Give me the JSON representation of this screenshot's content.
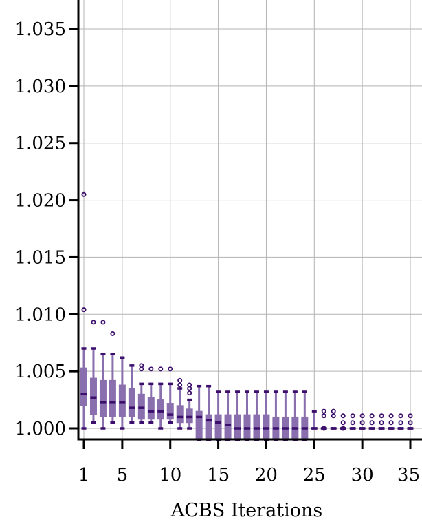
{
  "chart_data": {
    "type": "box",
    "title": "",
    "xlabel": "ACBS Iterations",
    "ylabel": "",
    "xlim": [
      0.5,
      35
    ],
    "ylim": [
      0.999,
      1.0372
    ],
    "xticks": [
      1,
      5,
      10,
      15,
      20,
      25,
      30,
      35
    ],
    "xtick_labels": [
      "1",
      "5",
      "10",
      "15",
      "20",
      "25",
      "30",
      "35"
    ],
    "yticks": [
      1.0,
      1.005,
      1.01,
      1.015,
      1.02,
      1.025,
      1.03,
      1.035
    ],
    "ytick_labels": [
      "1.000",
      "1.005",
      "1.010",
      "1.015",
      "1.020",
      "1.025",
      "1.030",
      "1.035"
    ],
    "grid": true,
    "colors": {
      "box": "#8a6fae",
      "dark": "#3b0f6b"
    },
    "boxes": [
      {
        "x": 1,
        "whislo": 1.0,
        "q1": 1.002,
        "med": 1.003,
        "q3": 1.0053,
        "whishi": 1.007,
        "fliers": [
          1.0205,
          1.0104
        ]
      },
      {
        "x": 2,
        "whislo": 1.0005,
        "q1": 1.0012,
        "med": 1.0027,
        "q3": 1.0044,
        "whishi": 1.007,
        "fliers": [
          1.0093
        ]
      },
      {
        "x": 3,
        "whislo": 1.0,
        "q1": 1.001,
        "med": 1.0023,
        "q3": 1.0042,
        "whishi": 1.0065,
        "fliers": [
          1.0093
        ]
      },
      {
        "x": 4,
        "whislo": 1.0005,
        "q1": 1.001,
        "med": 1.0023,
        "q3": 1.0042,
        "whishi": 1.0065,
        "fliers": [
          1.0083
        ]
      },
      {
        "x": 5,
        "whislo": 1.0,
        "q1": 1.001,
        "med": 1.0023,
        "q3": 1.0038,
        "whishi": 1.0062,
        "fliers": []
      },
      {
        "x": 6,
        "whislo": 1.0005,
        "q1": 1.001,
        "med": 1.0018,
        "q3": 1.0035,
        "whishi": 1.0055,
        "fliers": []
      },
      {
        "x": 7,
        "whislo": 1.0005,
        "q1": 1.0008,
        "med": 1.0018,
        "q3": 1.003,
        "whishi": 1.0039,
        "fliers": [
          1.0055,
          1.0052
        ]
      },
      {
        "x": 8,
        "whislo": 1.0005,
        "q1": 1.0008,
        "med": 1.0015,
        "q3": 1.0027,
        "whishi": 1.0039,
        "fliers": [
          1.0052
        ]
      },
      {
        "x": 9,
        "whislo": 1.0,
        "q1": 1.0008,
        "med": 1.0015,
        "q3": 1.0025,
        "whishi": 1.0039,
        "fliers": [
          1.0052
        ]
      },
      {
        "x": 10,
        "whislo": 1.0005,
        "q1": 1.0008,
        "med": 1.0012,
        "q3": 1.0022,
        "whishi": 1.0039,
        "fliers": [
          1.0052
        ]
      },
      {
        "x": 11,
        "whislo": 1.0,
        "q1": 1.0005,
        "med": 1.001,
        "q3": 1.002,
        "whishi": 1.0035,
        "fliers": [
          1.0042,
          1.0038
        ]
      },
      {
        "x": 12,
        "whislo": 1.0,
        "q1": 1.0005,
        "med": 1.001,
        "q3": 1.0017,
        "whishi": 1.0025,
        "fliers": [
          1.0038,
          1.0035,
          1.0031
        ]
      },
      {
        "x": 13,
        "whislo": 0.999,
        "q1": 0.999,
        "med": 1.001,
        "q3": 1.0015,
        "whishi": 1.0037,
        "fliers": []
      },
      {
        "x": 14,
        "whislo": 0.999,
        "q1": 0.999,
        "med": 1.0007,
        "q3": 1.0012,
        "whishi": 1.0037,
        "fliers": []
      },
      {
        "x": 15,
        "whislo": 0.999,
        "q1": 0.999,
        "med": 1.0005,
        "q3": 1.0012,
        "whishi": 1.0032,
        "fliers": []
      },
      {
        "x": 16,
        "whislo": 0.999,
        "q1": 0.999,
        "med": 1.0003,
        "q3": 1.0012,
        "whishi": 1.0032,
        "fliers": []
      },
      {
        "x": 17,
        "whislo": 0.999,
        "q1": 0.999,
        "med": 1.0,
        "q3": 1.0012,
        "whishi": 1.0032,
        "fliers": []
      },
      {
        "x": 18,
        "whislo": 0.999,
        "q1": 0.999,
        "med": 1.0,
        "q3": 1.0012,
        "whishi": 1.0032,
        "fliers": []
      },
      {
        "x": 19,
        "whislo": 0.999,
        "q1": 0.999,
        "med": 1.0,
        "q3": 1.0012,
        "whishi": 1.0032,
        "fliers": []
      },
      {
        "x": 20,
        "whislo": 0.999,
        "q1": 0.999,
        "med": 1.0,
        "q3": 1.0012,
        "whishi": 1.0032,
        "fliers": []
      },
      {
        "x": 21,
        "whislo": 0.999,
        "q1": 0.999,
        "med": 1.0,
        "q3": 1.001,
        "whishi": 1.0032,
        "fliers": []
      },
      {
        "x": 22,
        "whislo": 0.999,
        "q1": 0.999,
        "med": 1.0,
        "q3": 1.001,
        "whishi": 1.0032,
        "fliers": []
      },
      {
        "x": 23,
        "whislo": 0.999,
        "q1": 0.999,
        "med": 1.0,
        "q3": 1.001,
        "whishi": 1.0032,
        "fliers": []
      },
      {
        "x": 24,
        "whislo": 0.999,
        "q1": 0.999,
        "med": 1.0,
        "q3": 1.001,
        "whishi": 1.0032,
        "fliers": []
      },
      {
        "x": 25,
        "whislo": 1.0,
        "q1": 1.0,
        "med": 1.0,
        "q3": 1.0,
        "whishi": 1.0015,
        "fliers": []
      },
      {
        "x": 26,
        "whislo": 1.0,
        "q1": 1.0,
        "med": 1.0,
        "q3": 1.0,
        "whishi": 1.0,
        "fliers": [
          1.0015,
          1.0011,
          1.0
        ]
      },
      {
        "x": 27,
        "whislo": 1.0,
        "q1": 1.0,
        "med": 1.0,
        "q3": 1.0,
        "whishi": 1.0,
        "fliers": [
          1.0015,
          1.0011
        ]
      },
      {
        "x": 28,
        "whislo": 1.0,
        "q1": 1.0,
        "med": 1.0,
        "q3": 1.0,
        "whishi": 1.0,
        "fliers": [
          1.0011,
          1.0005,
          1.0
        ]
      },
      {
        "x": 29,
        "whislo": 1.0,
        "q1": 1.0,
        "med": 1.0,
        "q3": 1.0,
        "whishi": 1.0,
        "fliers": [
          1.0011,
          1.0005
        ]
      },
      {
        "x": 30,
        "whislo": 1.0,
        "q1": 1.0,
        "med": 1.0,
        "q3": 1.0,
        "whishi": 1.0,
        "fliers": [
          1.0011,
          1.0005
        ]
      },
      {
        "x": 31,
        "whislo": 1.0,
        "q1": 1.0,
        "med": 1.0,
        "q3": 1.0,
        "whishi": 1.0,
        "fliers": [
          1.0011,
          1.0005
        ]
      },
      {
        "x": 32,
        "whislo": 1.0,
        "q1": 1.0,
        "med": 1.0,
        "q3": 1.0,
        "whishi": 1.0,
        "fliers": [
          1.0011,
          1.0005
        ]
      },
      {
        "x": 33,
        "whislo": 1.0,
        "q1": 1.0,
        "med": 1.0,
        "q3": 1.0,
        "whishi": 1.0,
        "fliers": [
          1.0011,
          1.0005
        ]
      },
      {
        "x": 34,
        "whislo": 1.0,
        "q1": 1.0,
        "med": 1.0,
        "q3": 1.0,
        "whishi": 1.0,
        "fliers": [
          1.0011,
          1.0005
        ]
      },
      {
        "x": 35,
        "whislo": 1.0,
        "q1": 1.0,
        "med": 1.0,
        "q3": 1.0,
        "whishi": 1.0,
        "fliers": [
          1.0011,
          1.0005
        ]
      }
    ]
  }
}
